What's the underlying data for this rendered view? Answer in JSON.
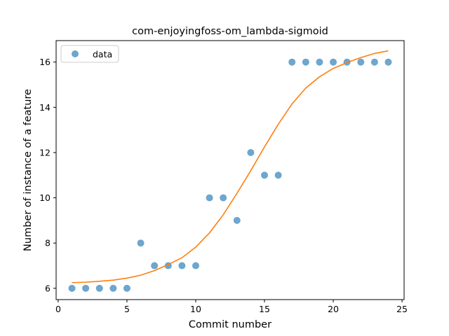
{
  "chart_data": {
    "type": "scatter",
    "title": "com-enjoyingfoss-om_lambda-sigmoid",
    "xlabel": "Commit number",
    "ylabel": "Number of instance of a feature",
    "xlim": [
      -0.15,
      25.15
    ],
    "ylim": [
      5.5,
      16.95
    ],
    "xticks": [
      0,
      5,
      10,
      15,
      20,
      25
    ],
    "yticks": [
      6,
      8,
      10,
      12,
      14,
      16
    ],
    "legend": {
      "placement": "top-left",
      "entries": [
        "data"
      ]
    },
    "grid": false,
    "series": [
      {
        "name": "data",
        "kind": "scatter",
        "color": "#1f77b4",
        "x": [
          1,
          2,
          3,
          4,
          5,
          6,
          7,
          8,
          9,
          10,
          11,
          12,
          13,
          14,
          15,
          16,
          17,
          18,
          19,
          20,
          21,
          22,
          23,
          24
        ],
        "y": [
          6,
          6,
          6,
          6,
          6,
          8,
          7,
          7,
          7,
          7,
          10,
          10,
          9,
          12,
          11,
          11,
          16,
          16,
          16,
          16,
          16,
          16,
          16,
          16
        ]
      },
      {
        "kind": "line",
        "color": "#ff7f0e",
        "x": [
          1,
          2,
          3,
          4,
          5,
          6,
          7,
          8,
          9,
          10,
          11,
          12,
          13,
          14,
          15,
          16,
          17,
          18,
          19,
          20,
          21,
          22,
          23,
          24
        ],
        "y": [
          6.25,
          6.27,
          6.31,
          6.36,
          6.45,
          6.58,
          6.78,
          7.05,
          7.35,
          7.82,
          8.45,
          9.25,
          10.2,
          11.2,
          12.25,
          13.25,
          14.15,
          14.85,
          15.35,
          15.72,
          15.98,
          16.2,
          16.38,
          16.5
        ]
      }
    ]
  }
}
